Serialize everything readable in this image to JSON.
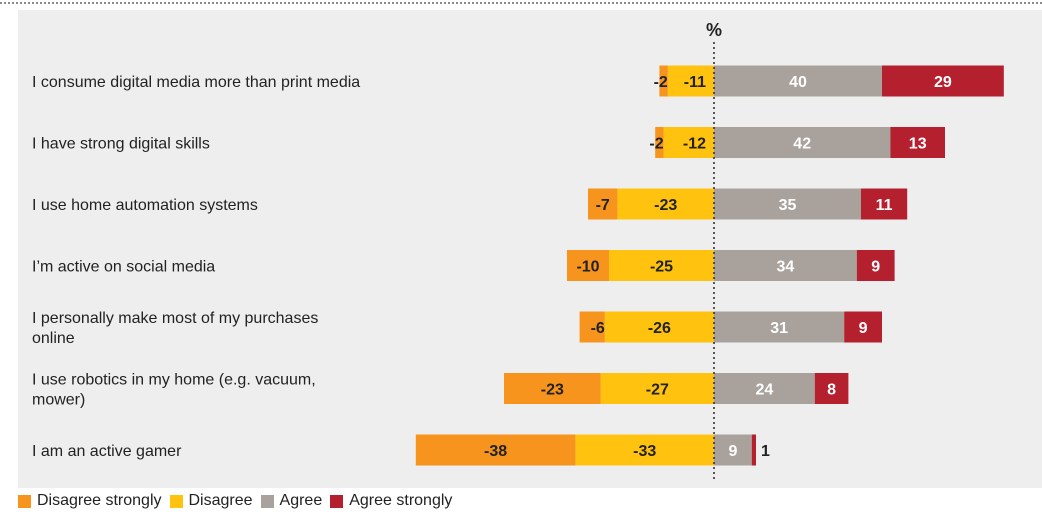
{
  "chart_data": {
    "type": "bar",
    "orientation": "horizontal-diverging",
    "unit_label": "%",
    "categories": [
      "I consume digital media more than print media",
      "I have strong digital skills",
      "I use home automation systems",
      "I’m active on social media",
      "I personally make most of my purchases online",
      "I use robotics in my home (e.g. vacuum, mower)",
      "I am an active gamer"
    ],
    "category_lines": [
      [
        "I consume digital media more than print media"
      ],
      [
        "I have strong digital skills"
      ],
      [
        "I use home automation systems"
      ],
      [
        "I’m active on social media"
      ],
      [
        "I personally make most of my purchases",
        "online"
      ],
      [
        "I use robotics in my home (e.g. vacuum,",
        "mower)"
      ],
      [
        "I am an active gamer"
      ]
    ],
    "series": [
      {
        "name": "Disagree strongly",
        "color": "#f7941d",
        "values": [
          -2,
          -2,
          -7,
          -10,
          -6,
          -23,
          -38
        ]
      },
      {
        "name": "Disagree",
        "color": "#ffc20e",
        "values": [
          -11,
          -12,
          -23,
          -25,
          -26,
          -27,
          -33
        ]
      },
      {
        "name": "Agree",
        "color": "#a9a19b",
        "values": [
          40,
          42,
          35,
          34,
          31,
          24,
          9
        ]
      },
      {
        "name": "Agree strongly",
        "color": "#b5202e",
        "values": [
          29,
          13,
          11,
          9,
          9,
          8,
          1
        ]
      }
    ],
    "xlim": [
      -71,
      71
    ],
    "legend_position": "bottom-left",
    "grid": false
  }
}
